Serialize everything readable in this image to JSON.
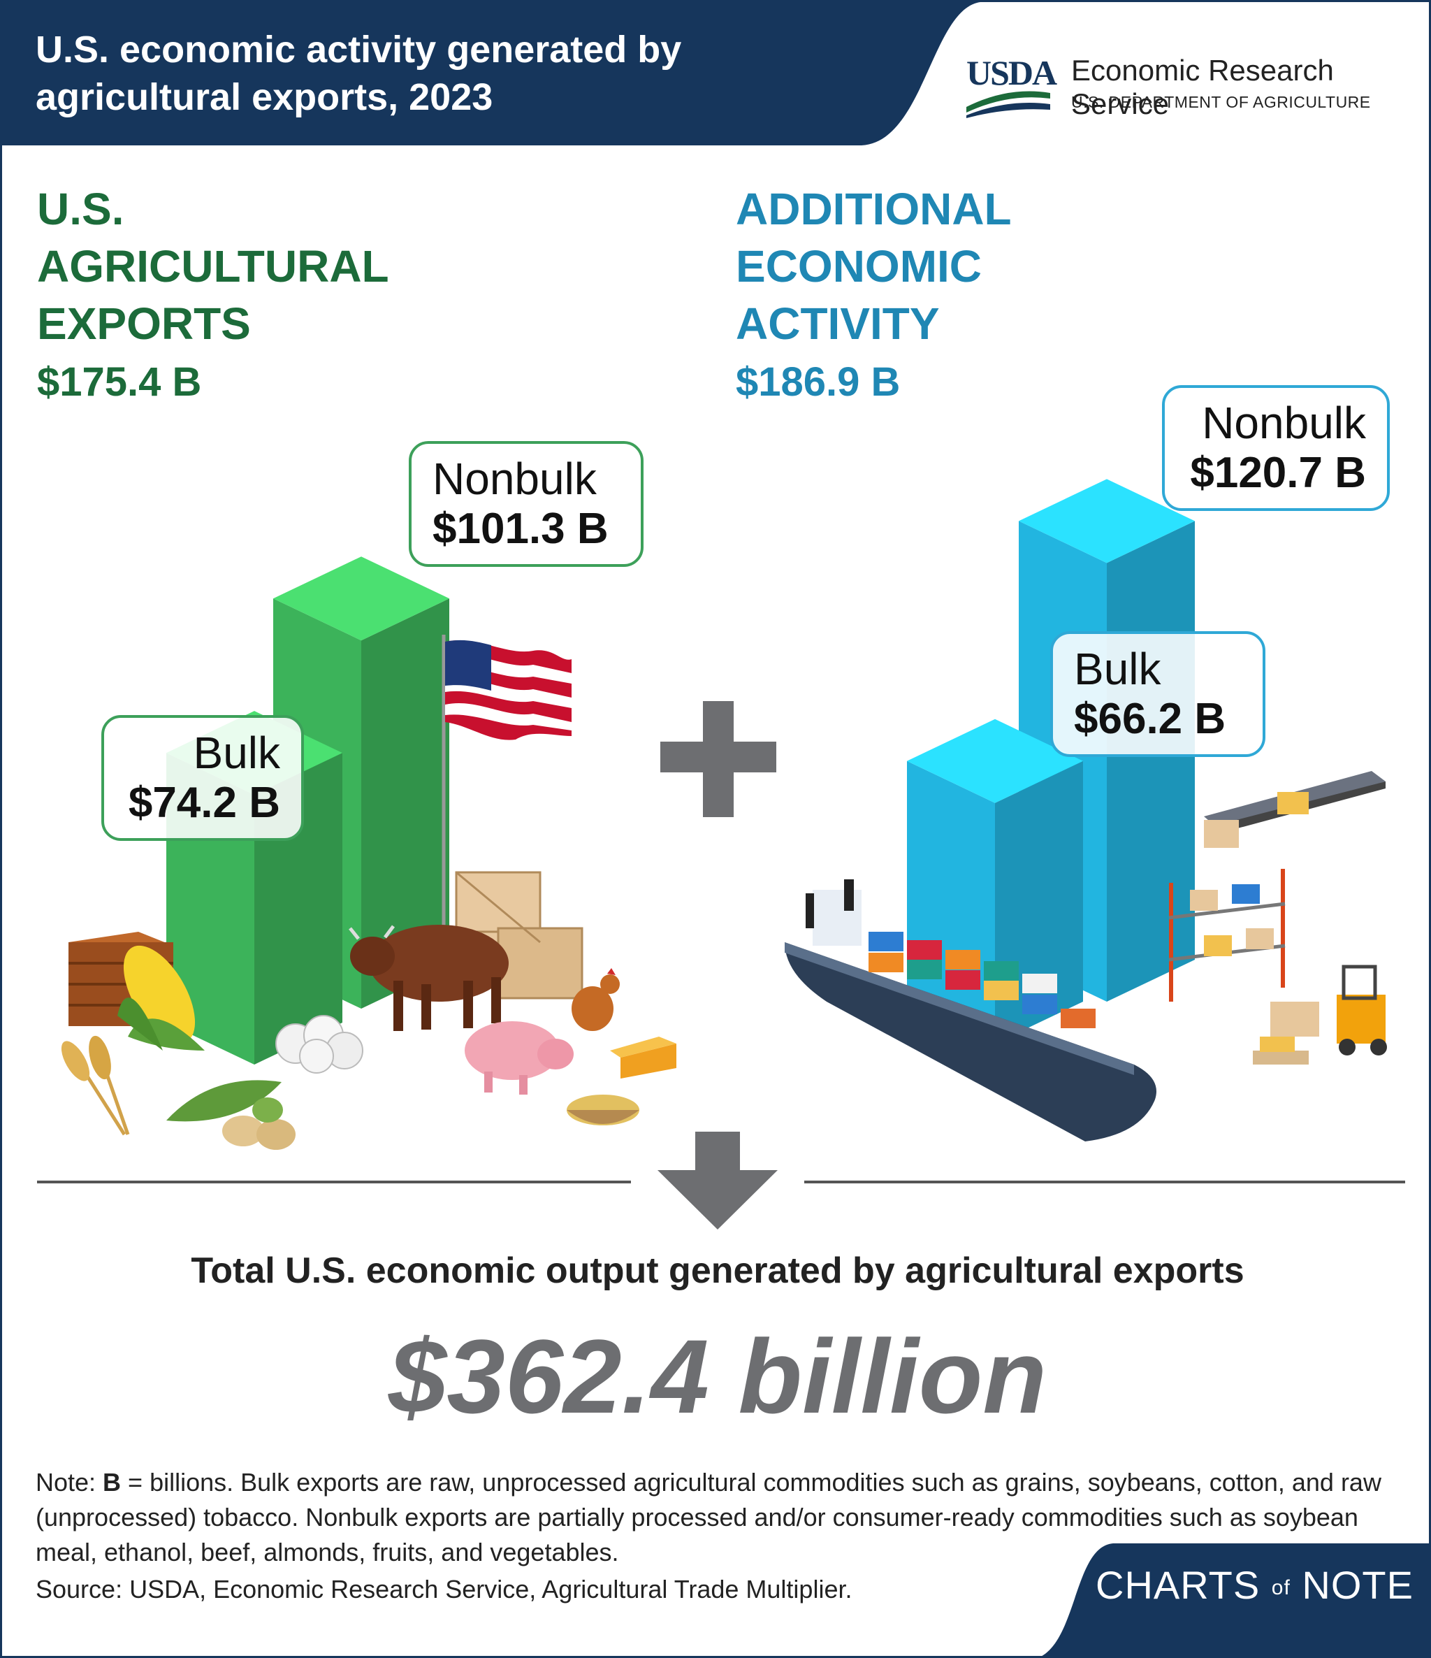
{
  "header": {
    "title": "U.S. economic activity generated by agricultural exports, 2023",
    "logo_word": "USDA",
    "agency": "Economic Research Service",
    "department": "U.S. DEPARTMENT OF AGRICULTURE"
  },
  "chart_data": [
    {
      "type": "bar",
      "title": "U.S. AGRICULTURAL EXPORTS",
      "total": "$175.4 B",
      "categories": [
        "Bulk",
        "Nonbulk"
      ],
      "values": [
        74.2,
        101.3
      ],
      "value_labels": [
        "$74.2 B",
        "$101.3 B"
      ],
      "unit": "billion USD",
      "color": "#3cb35a"
    },
    {
      "type": "bar",
      "title": "ADDITIONAL ECONOMIC ACTIVITY",
      "total": "$186.9 B",
      "categories": [
        "Bulk",
        "Nonbulk"
      ],
      "values": [
        66.2,
        120.7
      ],
      "value_labels": [
        "$66.2 B",
        "$120.7 B"
      ],
      "unit": "billion USD",
      "color": "#22b5e0"
    }
  ],
  "left": {
    "heading_lines": [
      "U.S.",
      "AGRICULTURAL",
      "EXPORTS"
    ],
    "total": "$175.4 B",
    "bulk_label": "Bulk",
    "bulk_value": "$74.2 B",
    "nonbulk_label": "Nonbulk",
    "nonbulk_value": "$101.3 B"
  },
  "right": {
    "heading_lines": [
      "ADDITIONAL",
      "ECONOMIC",
      "ACTIVITY"
    ],
    "total": "$186.9 B",
    "bulk_label": "Bulk",
    "bulk_value": "$66.2 B",
    "nonbulk_label": "Nonbulk",
    "nonbulk_value": "$120.7 B"
  },
  "summary": {
    "label": "Total U.S. economic output generated by agricultural exports",
    "value": "$362.4 billion"
  },
  "note": {
    "prefix": "Note: ",
    "bold": "B",
    "text": " = billions. Bulk exports are raw, unprocessed agricultural commodities such as grains, soybeans, cotton, and raw (unprocessed) tobacco. Nonbulk exports are partially processed and/or consumer-ready commodities such as soybean meal, ethanol, beef, almonds, fruits, and vegetables."
  },
  "source": "Source: USDA, Economic Research Service, Agricultural Trade Multiplier.",
  "branding": {
    "charts": "CHARTS",
    "of": "of",
    "note": "NOTE"
  },
  "colors": {
    "navy": "#16365c",
    "green_text": "#1c6b3a",
    "blue_text": "#1f87b4",
    "green_bar": "#3cb35a",
    "blue_bar": "#22b5e0",
    "gray": "#6d6e71"
  },
  "icons": [
    "usda-logo",
    "plus-icon",
    "down-arrow-icon",
    "us-flag-icon",
    "cattle-icon",
    "pig-icon",
    "chicken-icon",
    "corn-icon",
    "wheat-icon",
    "soybean-icon",
    "cotton-icon",
    "cheese-icon",
    "crate-icon",
    "boxes-icon",
    "container-ship-icon",
    "conveyor-icon",
    "warehouse-rack-icon",
    "forklift-icon"
  ]
}
